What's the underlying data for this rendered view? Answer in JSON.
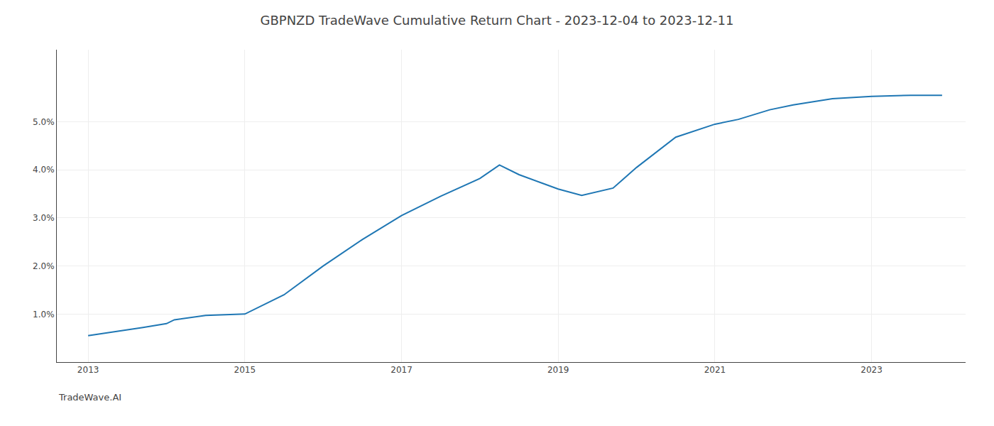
{
  "chart_data": {
    "type": "line",
    "title": "GBPNZD TradeWave Cumulative Return Chart - 2023-12-04 to 2023-12-11",
    "annotations": [
      "TradeWave.AI"
    ],
    "x": [
      2013.0,
      2013.3,
      2013.7,
      2014.0,
      2014.1,
      2014.5,
      2015.0,
      2015.5,
      2016.0,
      2016.5,
      2017.0,
      2017.5,
      2018.0,
      2018.25,
      2018.5,
      2019.0,
      2019.3,
      2019.7,
      2020.0,
      2020.5,
      2021.0,
      2021.3,
      2021.7,
      2022.0,
      2022.5,
      2023.0,
      2023.5,
      2023.9
    ],
    "values": [
      0.55,
      0.62,
      0.72,
      0.8,
      0.88,
      0.97,
      1.0,
      1.4,
      2.0,
      2.55,
      3.05,
      3.45,
      3.82,
      4.1,
      3.9,
      3.6,
      3.47,
      3.62,
      4.05,
      4.68,
      4.95,
      5.05,
      5.25,
      5.35,
      5.48,
      5.53,
      5.55,
      5.55
    ],
    "xlim": [
      2012.6,
      2024.2
    ],
    "xticks": [
      2013,
      2015,
      2017,
      2019,
      2021,
      2023
    ],
    "ylim": [
      0.0,
      6.5
    ],
    "yticks": [
      {
        "value": 1.0,
        "label": "1.0%"
      },
      {
        "value": 2.0,
        "label": "2.0%"
      },
      {
        "value": 3.0,
        "label": "3.0%"
      },
      {
        "value": 4.0,
        "label": "4.0%"
      },
      {
        "value": 5.0,
        "label": "5.0%"
      }
    ],
    "grid": true
  }
}
